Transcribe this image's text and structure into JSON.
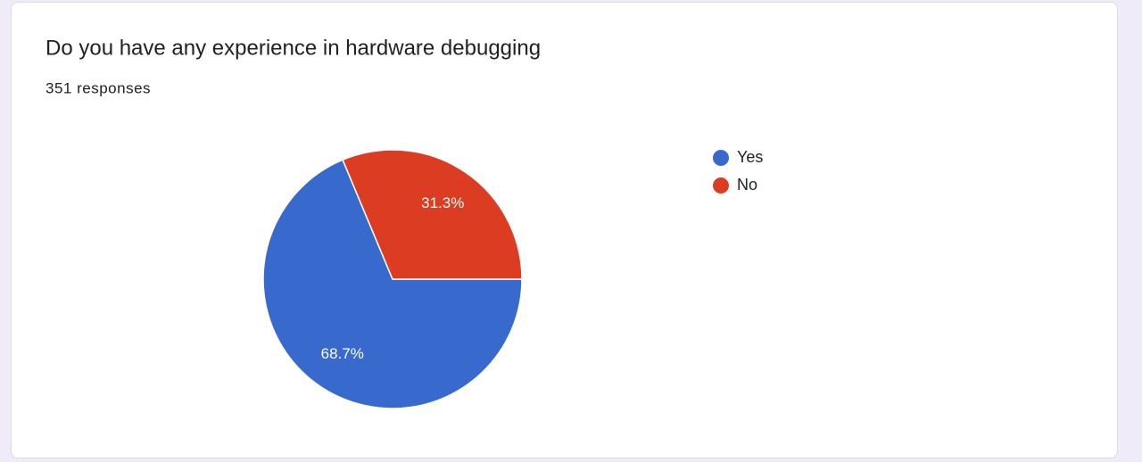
{
  "chart_data": {
    "type": "pie",
    "title": "Do you have any experience in hardware debugging",
    "subtitle": "351 responses",
    "categories": [
      "Yes",
      "No"
    ],
    "values": [
      68.7,
      31.3
    ],
    "value_labels": [
      "68.7%",
      "31.3%"
    ],
    "colors": [
      "#3869cc",
      "#dc3c22"
    ],
    "legend": "right"
  }
}
